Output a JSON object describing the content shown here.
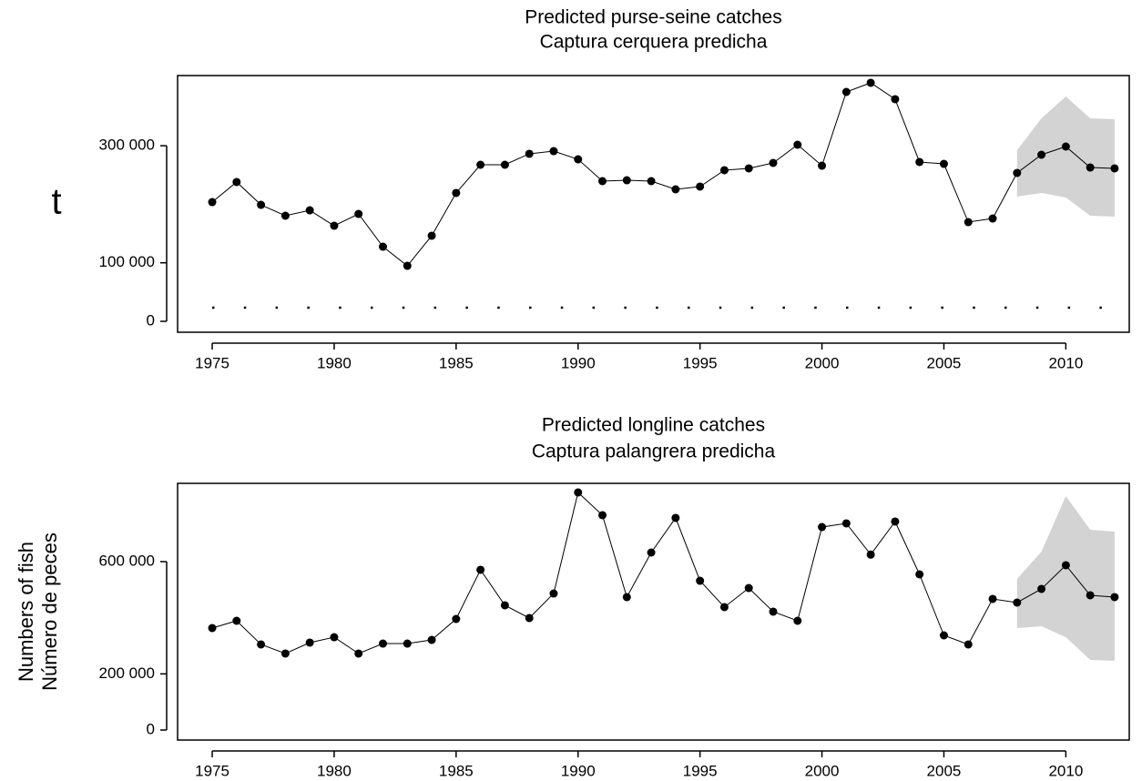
{
  "chart_data": [
    {
      "type": "line",
      "title": [
        "Predicted purse-seine catches",
        "Captura cerquera predicha"
      ],
      "ylabel": [
        "t"
      ],
      "x": [
        1975,
        1976,
        1977,
        1978,
        1979,
        1980,
        1981,
        1982,
        1983,
        1984,
        1985,
        1986,
        1987,
        1988,
        1989,
        1990,
        1991,
        1992,
        1993,
        1994,
        1995,
        1996,
        1997,
        1998,
        1999,
        2000,
        2001,
        2002,
        2003,
        2004,
        2005,
        2006,
        2007,
        2008,
        2009,
        2010,
        2011,
        2012
      ],
      "values": [
        203700,
        238000,
        199000,
        180400,
        189700,
        163300,
        183500,
        127500,
        94800,
        146200,
        219300,
        267500,
        267500,
        286200,
        290800,
        276800,
        239500,
        241000,
        239500,
        225500,
        230200,
        258200,
        261300,
        270600,
        301700,
        265900,
        391900,
        407500,
        379500,
        272200,
        269000,
        169500,
        175700,
        253500,
        284600,
        298600,
        262800,
        261300
      ],
      "color": "#000000",
      "band": {
        "x": [
          2008,
          2009,
          2010,
          2011,
          2012
        ],
        "upper": [
          292400,
          346800,
          384100,
          346800,
          345300
        ],
        "lower": [
          213100,
          219300,
          211500,
          180400,
          178800
        ],
        "color": "#d3d3d3"
      },
      "xlim": [
        1973.58,
        2012.6
      ],
      "ylim": [
        -18660,
        419900
      ],
      "xticks": [
        1975,
        1980,
        1985,
        1990,
        1995,
        2000,
        2005,
        2010
      ],
      "yticks": [
        0,
        {
          "value": 100000,
          "label": "100 000"
        },
        {
          "value": 300000,
          "label": "300 000"
        }
      ]
    },
    {
      "type": "line",
      "title": [
        "Predicted longline catches",
        "Captura palangrera predicha"
      ],
      "ylabel": [
        "Numbers of fish",
        "Número de peces"
      ],
      "x": [
        1975,
        1976,
        1977,
        1978,
        1979,
        1980,
        1981,
        1982,
        1983,
        1984,
        1985,
        1986,
        1987,
        1988,
        1989,
        1990,
        1991,
        1992,
        1993,
        1994,
        1995,
        1996,
        1997,
        1998,
        1999,
        2000,
        2001,
        2002,
        2003,
        2004,
        2005,
        2006,
        2007,
        2008,
        2009,
        2010,
        2011,
        2012
      ],
      "values": [
        363300,
        389200,
        304900,
        272500,
        311400,
        330800,
        272500,
        308100,
        308100,
        321100,
        395700,
        570900,
        444400,
        399000,
        486500,
        846600,
        765500,
        473600,
        632500,
        755800,
        531900,
        437900,
        506000,
        421700,
        389200,
        723300,
        736300,
        625000,
        742800,
        554700,
        337300,
        304900,
        467100,
        454100,
        502800,
        587100,
        480100,
        473600
      ],
      "color": "#000000",
      "band": {
        "x": [
          2008,
          2009,
          2010,
          2011,
          2012
        ],
        "upper": [
          538400,
          635700,
          833600,
          713600,
          707100
        ],
        "lower": [
          363300,
          369800,
          330800,
          249800,
          246500
        ],
        "color": "#d3d3d3"
      },
      "xlim": [
        1973.58,
        2012.6
      ],
      "ylim": [
        -35700,
        879000
      ],
      "xticks": [
        1975,
        1980,
        1985,
        1990,
        1995,
        2000,
        2005,
        2010
      ],
      "yticks": [
        0,
        {
          "value": 200000,
          "label": "200 000"
        },
        {
          "value": 600000,
          "label": "600 000"
        }
      ]
    }
  ]
}
